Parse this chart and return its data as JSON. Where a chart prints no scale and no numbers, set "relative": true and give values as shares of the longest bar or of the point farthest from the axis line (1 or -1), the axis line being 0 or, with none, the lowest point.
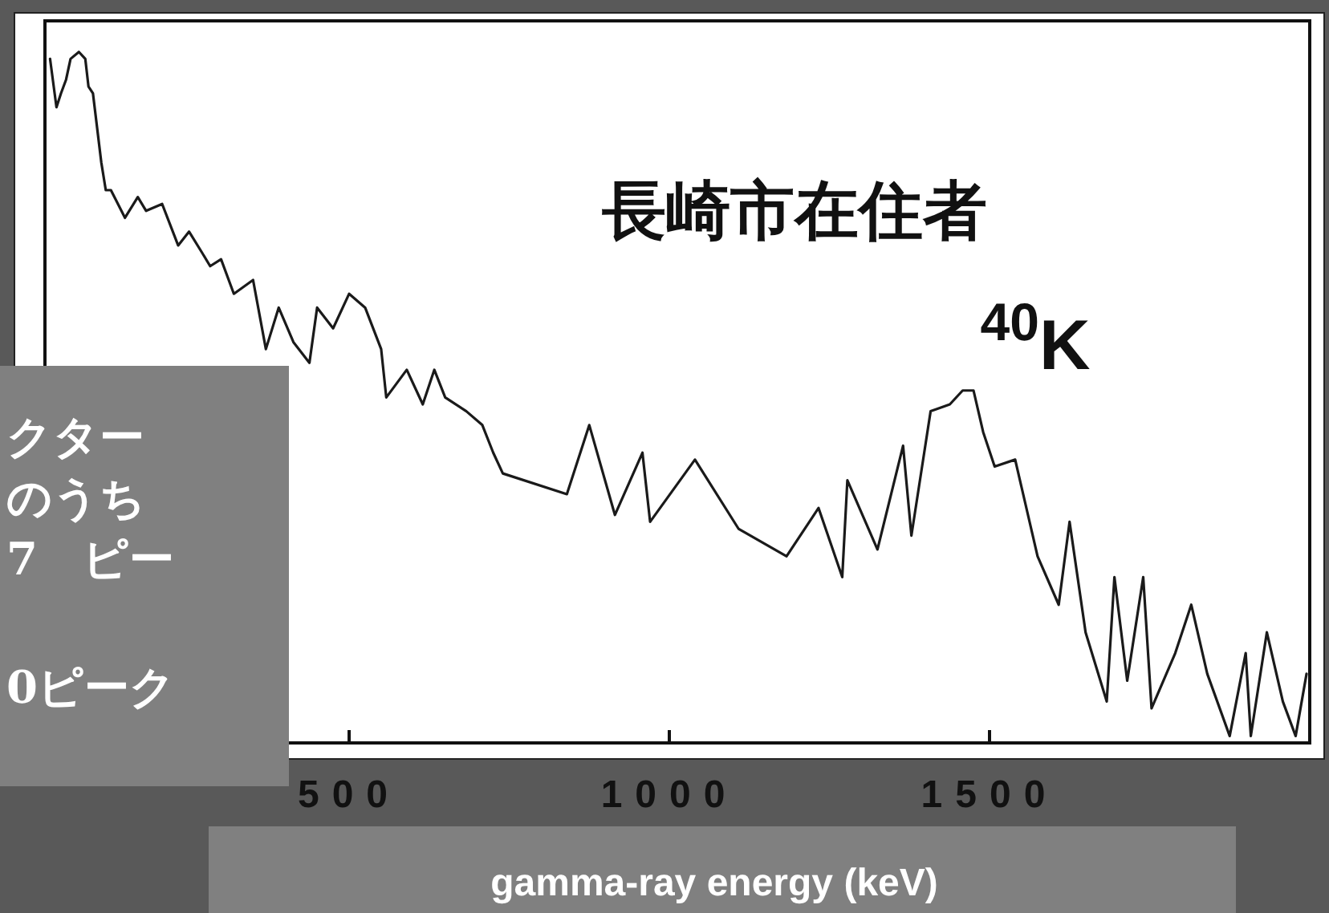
{
  "chart_data": {
    "type": "line",
    "title": "長崎市在住者",
    "xlabel": "gamma-ray energy (keV)",
    "relative": true,
    "xlim": [
      25,
      2000
    ],
    "xticks": [
      500,
      1000,
      1500
    ],
    "grid": false,
    "marker": "none",
    "line_style": "solid",
    "annotations": [
      "$^{40}$K",
      "クター",
      "のうち",
      "7　ピー",
      "0ピーク"
    ],
    "series": [
      {
        "color": "#1a1a1a",
        "x": [
          33,
          43,
          50,
          58,
          65,
          78,
          88,
          93,
          100,
          113,
          120,
          128,
          150,
          170,
          183,
          208,
          233,
          250,
          270,
          283,
          300,
          320,
          350,
          370,
          390,
          413,
          438,
          450,
          475,
          500,
          525,
          550,
          558,
          590,
          615,
          633,
          650,
          683,
          708,
          725,
          740,
          840,
          875,
          915,
          958,
          970,
          1040,
          1108,
          1183,
          1233,
          1270,
          1278,
          1325,
          1365,
          1378,
          1408,
          1438,
          1458,
          1475,
          1490,
          1508,
          1540,
          1575,
          1608,
          1625,
          1650,
          1683,
          1695,
          1715,
          1740,
          1753,
          1790,
          1815,
          1840,
          1875,
          1900,
          1908,
          1933,
          1958,
          1978,
          1995
        ],
        "values": [
          0.99,
          0.92,
          0.94,
          0.96,
          0.99,
          1.0,
          0.99,
          0.95,
          0.94,
          0.84,
          0.8,
          0.8,
          0.76,
          0.79,
          0.77,
          0.78,
          0.72,
          0.74,
          0.71,
          0.69,
          0.7,
          0.65,
          0.67,
          0.57,
          0.63,
          0.58,
          0.55,
          0.63,
          0.6,
          0.65,
          0.63,
          0.57,
          0.5,
          0.54,
          0.49,
          0.54,
          0.5,
          0.48,
          0.46,
          0.42,
          0.39,
          0.36,
          0.46,
          0.33,
          0.42,
          0.32,
          0.41,
          0.31,
          0.27,
          0.34,
          0.24,
          0.38,
          0.28,
          0.43,
          0.3,
          0.48,
          0.49,
          0.51,
          0.51,
          0.45,
          0.4,
          0.41,
          0.27,
          0.2,
          0.32,
          0.16,
          0.06,
          0.24,
          0.09,
          0.24,
          0.05,
          0.13,
          0.2,
          0.1,
          0.01,
          0.13,
          0.01,
          0.16,
          0.06,
          0.01,
          0.1
        ]
      }
    ]
  }
}
